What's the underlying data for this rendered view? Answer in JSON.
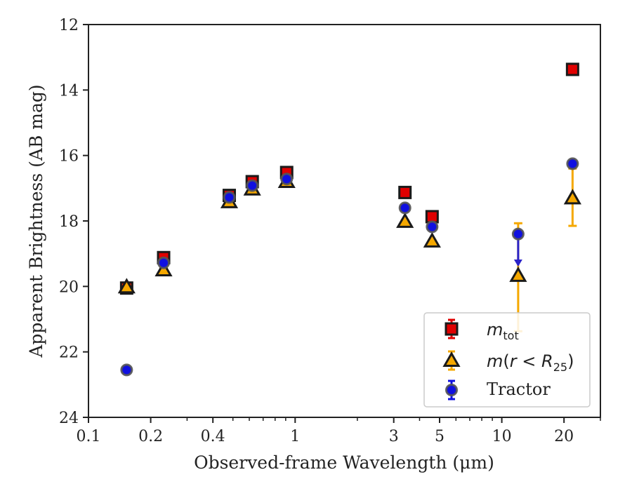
{
  "chart_data": {
    "type": "scatter",
    "xlabel": "Observed-frame Wavelength (μm)",
    "ylabel": "Apparent Brightness (AB mag)",
    "xscale": "log",
    "xlim": [
      0.1,
      30
    ],
    "ylim": [
      24,
      12
    ],
    "y_inverted": true,
    "x_ticks": [
      {
        "value": 0.1,
        "label": "0.1"
      },
      {
        "value": 0.2,
        "label": "0.2"
      },
      {
        "value": 0.4,
        "label": "0.4"
      },
      {
        "value": 1,
        "label": "1"
      },
      {
        "value": 3,
        "label": "3"
      },
      {
        "value": 5,
        "label": "5"
      },
      {
        "value": 10,
        "label": "10"
      },
      {
        "value": 20,
        "label": "20"
      }
    ],
    "y_ticks": [
      12,
      14,
      16,
      18,
      20,
      22,
      24
    ],
    "legend_position": "lower-right",
    "series": [
      {
        "name": "m_tot",
        "legend_label": "m_tot",
        "marker": "square",
        "color": "#e00000",
        "points": [
          {
            "x": 0.153,
            "y": 20.05,
            "err": 0.05
          },
          {
            "x": 0.231,
            "y": 19.12,
            "err": 0.05
          },
          {
            "x": 0.48,
            "y": 17.22,
            "err": 0.04
          },
          {
            "x": 0.62,
            "y": 16.8,
            "err": 0.04
          },
          {
            "x": 0.91,
            "y": 16.52,
            "err": 0.04
          },
          {
            "x": 3.4,
            "y": 17.13,
            "err": 0.04
          },
          {
            "x": 4.6,
            "y": 17.87,
            "err": 0.04
          },
          {
            "x": 22,
            "y": 13.37,
            "err": 0.04
          }
        ]
      },
      {
        "name": "m(r < R25)",
        "legend_label": "m(r < R_25)",
        "marker": "triangle",
        "color": "#f5a800",
        "points": [
          {
            "x": 0.153,
            "y": 20.02,
            "err": 0.05
          },
          {
            "x": 0.231,
            "y": 19.5,
            "err": 0.05
          },
          {
            "x": 0.48,
            "y": 17.42,
            "err": 0.04
          },
          {
            "x": 0.62,
            "y": 17.03,
            "err": 0.04
          },
          {
            "x": 0.91,
            "y": 16.8,
            "err": 0.04
          },
          {
            "x": 3.4,
            "y": 18.02,
            "err": 0.04
          },
          {
            "x": 4.6,
            "y": 18.62,
            "err": 0.04
          },
          {
            "x": 12,
            "y": 19.67,
            "err_low": 1.7,
            "err_high": 1.6
          },
          {
            "x": 22,
            "y": 17.3,
            "err_low": 0.85,
            "err_high": 0.9
          }
        ]
      },
      {
        "name": "Tractor",
        "legend_label": "Tractor",
        "marker": "circle",
        "color": "#1010e0",
        "points": [
          {
            "x": 0.153,
            "y": 22.55,
            "err": 0.04
          },
          {
            "x": 0.231,
            "y": 19.28,
            "err": 0.04
          },
          {
            "x": 0.48,
            "y": 17.28,
            "err": 0.04
          },
          {
            "x": 0.62,
            "y": 16.92,
            "err": 0.04
          },
          {
            "x": 0.91,
            "y": 16.72,
            "err": 0.04
          },
          {
            "x": 3.4,
            "y": 17.6,
            "err": 0.04
          },
          {
            "x": 4.6,
            "y": 18.18,
            "err": 0.04
          },
          {
            "x": 12,
            "y": 18.4,
            "upper_limit": true,
            "limit_to": 19.35
          },
          {
            "x": 22,
            "y": 16.25,
            "err": 0.04
          }
        ]
      }
    ]
  }
}
